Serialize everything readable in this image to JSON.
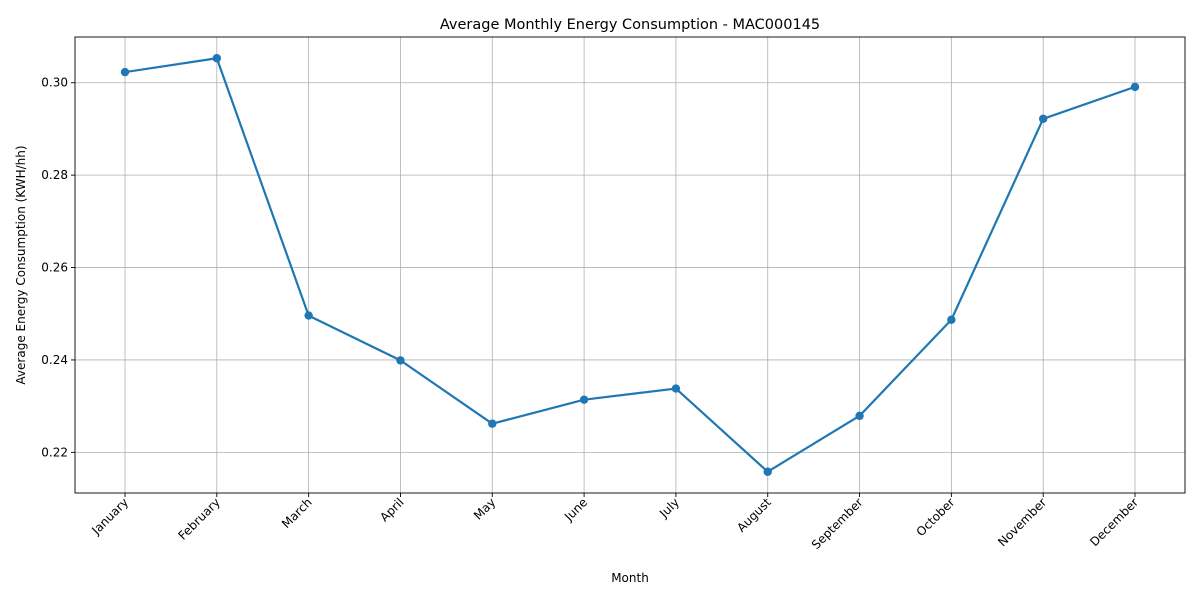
{
  "chart_data": {
    "type": "line",
    "title": "Average Monthly Energy Consumption - MAC000145",
    "xlabel": "Month",
    "ylabel": "Average Energy Consumption (KWH/hh)",
    "categories": [
      "January",
      "February",
      "March",
      "April",
      "May",
      "June",
      "July",
      "August",
      "September",
      "October",
      "November",
      "December"
    ],
    "series": [
      {
        "values": [
          0.3023,
          0.3053,
          0.2496,
          0.2399,
          0.2262,
          0.2314,
          0.2338,
          0.2158,
          0.2279,
          0.2487,
          0.2922,
          0.2991
        ]
      }
    ],
    "ylim": [
      0.2112,
      0.3099
    ],
    "yticks": [
      0.22,
      0.24,
      0.26,
      0.28,
      0.3
    ],
    "ytick_labels": [
      "0.22",
      "0.24",
      "0.26",
      "0.28",
      "0.30"
    ],
    "grid": true,
    "color": "#1f77b4"
  }
}
